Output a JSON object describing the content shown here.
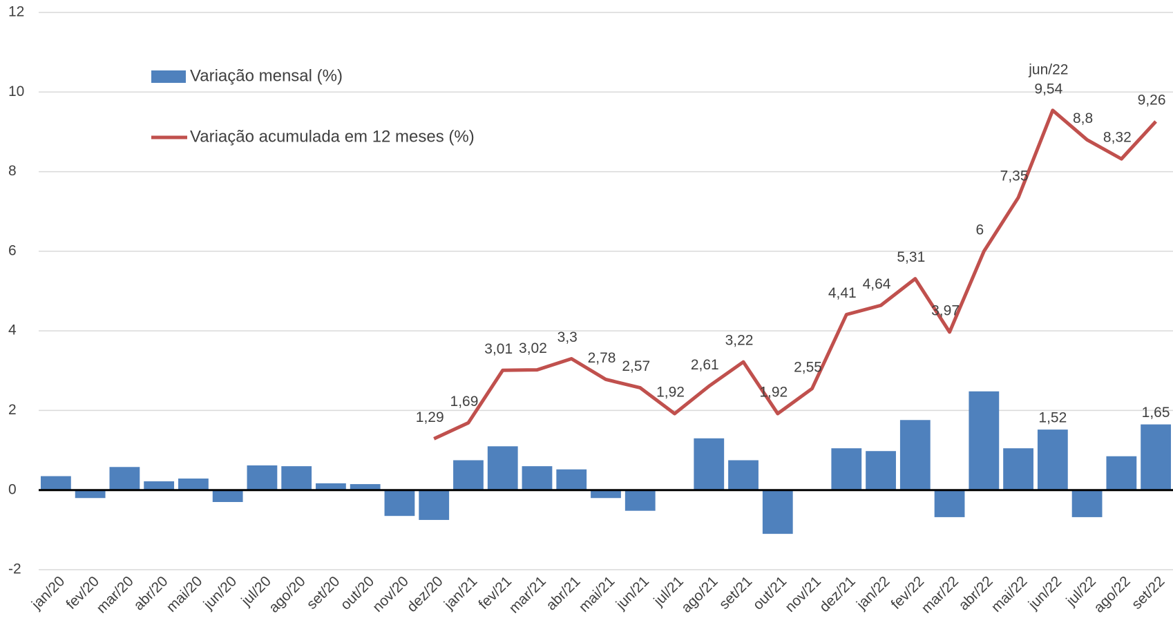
{
  "chart_data": {
    "type": "bar_line",
    "categories": [
      "jan/20",
      "fev/20",
      "mar/20",
      "abr/20",
      "mai/20",
      "jun/20",
      "jul/20",
      "ago/20",
      "set/20",
      "out/20",
      "nov/20",
      "dez/20",
      "jan/21",
      "fev/21",
      "mar/21",
      "abr/21",
      "mai/21",
      "jun/21",
      "jul/21",
      "ago/21",
      "set/21",
      "out/21",
      "nov/21",
      "dez/21",
      "jan/22",
      "fev/22",
      "mar/22",
      "abr/22",
      "mai/22",
      "jun/22",
      "jul/22",
      "ago/22",
      "set/22"
    ],
    "series": [
      {
        "name": "Variação mensal (%)",
        "color": "#4f81bd",
        "kind": "bar",
        "values": [
          0.35,
          -0.2,
          0.58,
          0.22,
          0.29,
          -0.3,
          0.62,
          0.6,
          0.17,
          0.15,
          -0.65,
          -0.75,
          0.75,
          1.1,
          0.6,
          0.52,
          -0.2,
          -0.52,
          null,
          1.3,
          0.75,
          -1.1,
          null,
          1.05,
          0.98,
          1.76,
          -0.68,
          2.48,
          1.05,
          1.52,
          -0.68,
          0.85,
          1.65
        ],
        "value_labels": [
          null,
          null,
          null,
          null,
          null,
          null,
          null,
          null,
          null,
          null,
          null,
          null,
          null,
          null,
          null,
          null,
          null,
          null,
          null,
          null,
          null,
          null,
          null,
          null,
          null,
          null,
          null,
          null,
          null,
          "1,52",
          null,
          null,
          "1,65"
        ]
      },
      {
        "name": "Variação acumulada em 12 meses (%)",
        "color": "#c0504d",
        "kind": "line",
        "values": [
          null,
          null,
          null,
          null,
          null,
          null,
          null,
          null,
          null,
          null,
          null,
          1.29,
          1.69,
          3.01,
          3.02,
          3.3,
          2.78,
          2.57,
          1.92,
          2.61,
          3.22,
          1.92,
          2.55,
          4.41,
          4.64,
          5.31,
          3.97,
          6,
          7.35,
          9.54,
          8.8,
          8.32,
          9.26
        ],
        "value_labels": [
          null,
          null,
          null,
          null,
          null,
          null,
          null,
          null,
          null,
          null,
          null,
          "1,29",
          "1,69",
          "3,01",
          "3,02",
          "3,3",
          "2,78",
          "2,57",
          "1,92",
          "2,61",
          "3,22",
          "1,92",
          "2,55",
          "4,41",
          "4,64",
          "5,31",
          "3,97",
          "6",
          "7,35",
          "9,54",
          "8,8",
          "8,32",
          "9,26"
        ]
      }
    ],
    "annotation": "jun/22",
    "ylim": [
      -2,
      12
    ],
    "yticks": [
      -2,
      0,
      2,
      4,
      6,
      8,
      10,
      12
    ],
    "grid": true,
    "legend": "top-left"
  }
}
